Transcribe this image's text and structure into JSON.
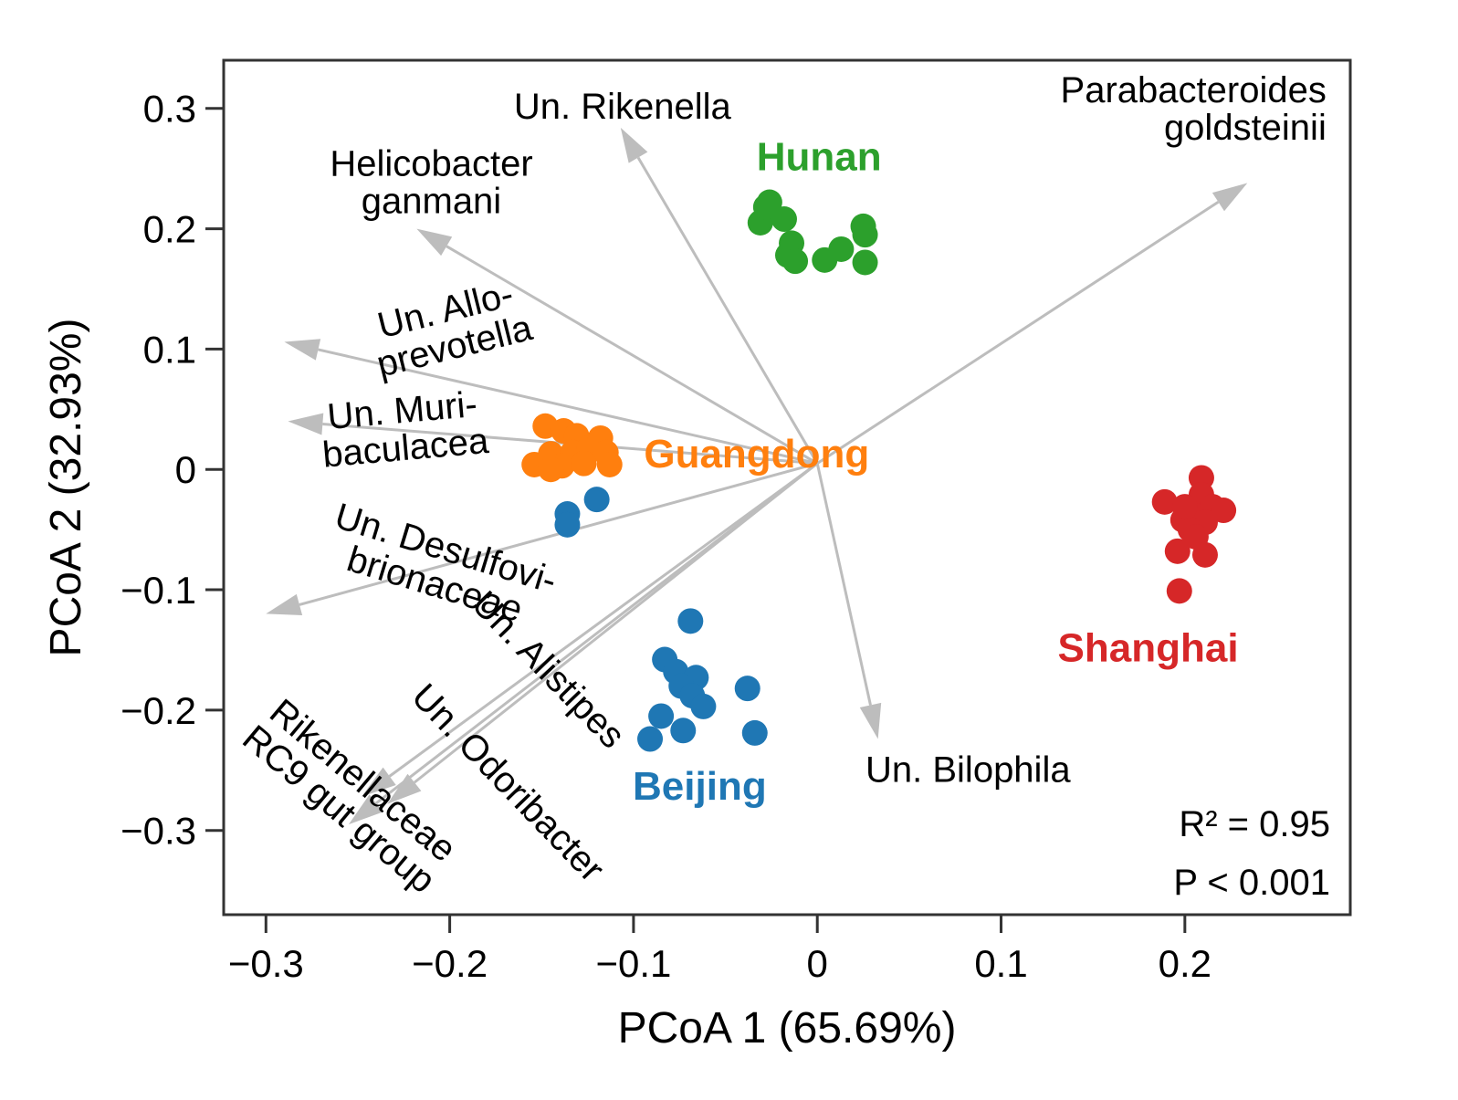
{
  "chart_data": {
    "type": "scatter",
    "xlabel": "PCoA 1 (65.69%)",
    "ylabel": "PCoA 2 (32.93%)",
    "xlim": [
      -0.323,
      0.29
    ],
    "ylim": [
      -0.37,
      0.34
    ],
    "xticks": [
      -0.3,
      -0.2,
      -0.1,
      0,
      0.1,
      0.2
    ],
    "xtick_labels": [
      "−0.3",
      "−0.2",
      "−0.1",
      "0",
      "0.1",
      "0.2"
    ],
    "yticks": [
      0.3,
      0.2,
      0.1,
      0,
      -0.1,
      -0.2,
      -0.3
    ],
    "ytick_labels": [
      "0.3",
      "0.2",
      "0.1",
      "0",
      "−0.1",
      "−0.2",
      "−0.3"
    ],
    "grid": false,
    "stats": [
      "R² = 0.95",
      "P < 0.001"
    ],
    "groups": [
      {
        "name": "Hunan",
        "color": "#2ca02c",
        "label_pos": [
          0.001,
          0.26
        ],
        "points": [
          [
            -0.026,
            0.222
          ],
          [
            -0.031,
            0.205
          ],
          [
            -0.018,
            0.208
          ],
          [
            -0.014,
            0.188
          ],
          [
            -0.016,
            0.178
          ],
          [
            -0.012,
            0.173
          ],
          [
            0.004,
            0.174
          ],
          [
            0.013,
            0.183
          ],
          [
            0.025,
            0.202
          ],
          [
            0.026,
            0.195
          ],
          [
            0.026,
            0.172
          ],
          [
            -0.028,
            0.218
          ]
        ]
      },
      {
        "name": "Guangdong",
        "color": "#ff7f0e",
        "label_pos": [
          -0.033,
          0.013
        ],
        "points": [
          [
            -0.148,
            0.036
          ],
          [
            -0.138,
            0.032
          ],
          [
            -0.131,
            0.028
          ],
          [
            -0.145,
            0.013
          ],
          [
            -0.133,
            0.014
          ],
          [
            -0.124,
            0.018
          ],
          [
            -0.118,
            0.026
          ],
          [
            -0.115,
            0.014
          ],
          [
            -0.154,
            0.004
          ],
          [
            -0.139,
            0.003
          ],
          [
            -0.127,
            0.005
          ],
          [
            -0.113,
            0.004
          ],
          [
            -0.145,
            0.0
          ]
        ]
      },
      {
        "name": "Beijing",
        "color": "#1f77b4",
        "label_pos": [
          -0.064,
          -0.263
        ],
        "points": [
          [
            -0.12,
            -0.025
          ],
          [
            -0.136,
            -0.037
          ],
          [
            -0.136,
            -0.046
          ],
          [
            -0.069,
            -0.126
          ],
          [
            -0.083,
            -0.158
          ],
          [
            -0.077,
            -0.168
          ],
          [
            -0.066,
            -0.173
          ],
          [
            -0.074,
            -0.18
          ],
          [
            -0.068,
            -0.188
          ],
          [
            -0.062,
            -0.197
          ],
          [
            -0.038,
            -0.182
          ],
          [
            -0.085,
            -0.205
          ],
          [
            -0.073,
            -0.217
          ],
          [
            -0.091,
            -0.224
          ],
          [
            -0.034,
            -0.219
          ]
        ]
      },
      {
        "name": "Shanghai",
        "color": "#d62728",
        "label_pos": [
          0.18,
          -0.148
        ],
        "points": [
          [
            0.209,
            -0.007
          ],
          [
            0.209,
            -0.021
          ],
          [
            0.189,
            -0.027
          ],
          [
            0.215,
            -0.031
          ],
          [
            0.221,
            -0.034
          ],
          [
            0.203,
            -0.036
          ],
          [
            0.199,
            -0.042
          ],
          [
            0.211,
            -0.044
          ],
          [
            0.203,
            -0.05
          ],
          [
            0.206,
            -0.056
          ],
          [
            0.196,
            -0.068
          ],
          [
            0.211,
            -0.071
          ],
          [
            0.197,
            -0.101
          ],
          [
            0.2,
            -0.031
          ]
        ]
      }
    ],
    "arrow_origin": [
      0.0,
      0.005
    ],
    "arrows": [
      {
        "label": [
          "Un. Rikenella"
        ],
        "end": [
          -0.107,
          0.284
        ],
        "label_pos": [
          -0.106,
          0.302
        ],
        "label_anchor": "middle",
        "rotation": 0
      },
      {
        "label": [
          "Parabacteroides",
          "goldsteinii"
        ],
        "end": [
          0.234,
          0.238
        ],
        "label_pos": [
          0.277,
          0.3
        ],
        "label_anchor": "end",
        "rotation": 0
      },
      {
        "label": [
          "Helicobacter",
          "ganmani"
        ],
        "end": [
          -0.218,
          0.2
        ],
        "label_pos": [
          -0.21,
          0.239
        ],
        "label_anchor": "middle",
        "rotation": 0
      },
      {
        "label": [
          "Un. Allo-",
          "prevotella"
        ],
        "end": [
          -0.29,
          0.106
        ],
        "label_pos": [
          -0.2,
          0.118
        ],
        "label_anchor": "middle",
        "rotation": 14
      },
      {
        "label": [
          "Un. Muri-",
          "baculacea"
        ],
        "end": [
          -0.288,
          0.04
        ],
        "label_pos": [
          -0.225,
          0.034
        ],
        "label_anchor": "middle",
        "rotation": 5
      },
      {
        "label": [
          "Un. Desulfovi-",
          "brionaceae"
        ],
        "end": [
          -0.3,
          -0.12
        ],
        "label_pos": [
          -0.205,
          -0.08
        ],
        "label_anchor": "middle",
        "rotation": -17
      },
      {
        "label": [
          "Rikenellaceae",
          "RC9 gut group"
        ],
        "end": [
          -0.255,
          -0.295
        ],
        "label_pos": [
          -0.2535,
          -0.27
        ],
        "label_anchor": "middle",
        "rotation": -40
      },
      {
        "label": [
          "Un. Alistipes"
        ],
        "end": [
          -0.234,
          -0.278
        ],
        "label_pos": [
          -0.146,
          -0.166
        ],
        "label_anchor": "middle",
        "rotation": -46
      },
      {
        "label": [
          "Un. Odoribacter"
        ],
        "end": [
          -0.248,
          -0.272
        ],
        "label_pos": [
          -0.168,
          -0.26
        ],
        "label_anchor": "middle",
        "rotation": -46
      },
      {
        "label": [
          "Un. Bilophila"
        ],
        "end": [
          0.033,
          -0.224
        ],
        "label_pos": [
          0.082,
          -0.249
        ],
        "label_anchor": "middle",
        "rotation": 0
      }
    ]
  }
}
